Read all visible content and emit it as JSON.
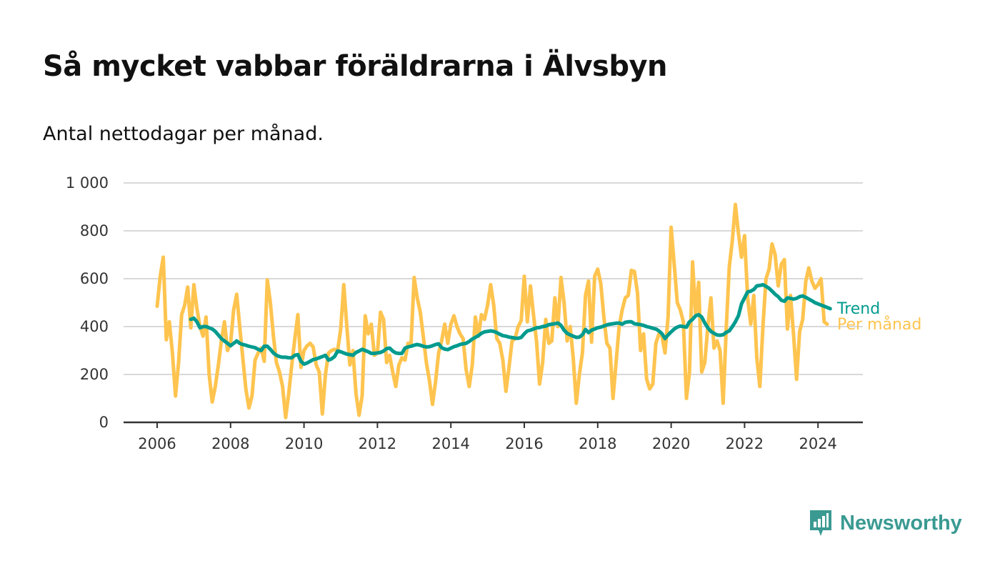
{
  "title": "Så mycket vabbar föräldrarna i Älvsbyn",
  "subtitle": "Antal nettodagar per månad.",
  "brand": {
    "name": "Newsworthy",
    "color": "#3a9a92"
  },
  "chart_data": {
    "type": "line",
    "x_start_year": 2006,
    "ylim": [
      0,
      1000
    ],
    "yticks": [
      {
        "value": 0,
        "label": "0"
      },
      {
        "value": 200,
        "label": "200"
      },
      {
        "value": 400,
        "label": "400"
      },
      {
        "value": 600,
        "label": "600"
      },
      {
        "value": 800,
        "label": "800"
      },
      {
        "value": 1000,
        "label": "1 000"
      }
    ],
    "xticks": [
      {
        "value": 2006,
        "label": "2006"
      },
      {
        "value": 2008,
        "label": "2008"
      },
      {
        "value": 2010,
        "label": "2010"
      },
      {
        "value": 2012,
        "label": "2012"
      },
      {
        "value": 2014,
        "label": "2014"
      },
      {
        "value": 2016,
        "label": "2016"
      },
      {
        "value": 2018,
        "label": "2018"
      },
      {
        "value": 2020,
        "label": "2020"
      },
      {
        "value": 2022,
        "label": "2022"
      },
      {
        "value": 2024,
        "label": "2024"
      }
    ],
    "grid": true,
    "series": [
      {
        "name": "Per månad",
        "color": "#fec44f",
        "start": "2006-01",
        "values": [
          485,
          610,
          690,
          345,
          420,
          290,
          110,
          250,
          450,
          490,
          565,
          395,
          575,
          475,
          400,
          360,
          440,
          200,
          85,
          150,
          240,
          340,
          420,
          300,
          330,
          470,
          535,
          400,
          270,
          140,
          60,
          110,
          260,
          290,
          310,
          255,
          595,
          500,
          360,
          250,
          210,
          150,
          20,
          120,
          240,
          350,
          450,
          230,
          300,
          320,
          330,
          315,
          240,
          210,
          35,
          200,
          290,
          300,
          305,
          300,
          390,
          575,
          400,
          240,
          300,
          120,
          30,
          110,
          445,
          370,
          410,
          280,
          290,
          460,
          430,
          250,
          280,
          210,
          150,
          240,
          270,
          260,
          330,
          330,
          605,
          520,
          460,
          360,
          250,
          175,
          75,
          170,
          290,
          340,
          410,
          330,
          410,
          445,
          400,
          370,
          350,
          220,
          150,
          240,
          440,
          360,
          450,
          430,
          490,
          575,
          490,
          350,
          330,
          260,
          130,
          230,
          340,
          350,
          400,
          425,
          610,
          420,
          570,
          450,
          340,
          160,
          250,
          430,
          330,
          340,
          520,
          400,
          605,
          500,
          340,
          400,
          270,
          80,
          200,
          290,
          530,
          590,
          335,
          610,
          640,
          580,
          440,
          330,
          310,
          100,
          250,
          400,
          470,
          520,
          530,
          635,
          630,
          540,
          300,
          370,
          180,
          140,
          160,
          330,
          370,
          360,
          290,
          440,
          815,
          660,
          500,
          470,
          420,
          100,
          210,
          670,
          450,
          585,
          210,
          250,
          400,
          520,
          310,
          340,
          300,
          80,
          390,
          650,
          760,
          910,
          790,
          690,
          780,
          520,
          410,
          530,
          270,
          150,
          400,
          600,
          640,
          745,
          700,
          570,
          660,
          680,
          390,
          530,
          370,
          180,
          380,
          430,
          590,
          645,
          590,
          560,
          575,
          600,
          420,
          410
        ]
      },
      {
        "name": "Trend",
        "color": "#009b8e",
        "start": "2006-12",
        "values": [
          430,
          435,
          420,
          395,
          400,
          400,
          395,
          390,
          380,
          365,
          350,
          340,
          330,
          320,
          330,
          340,
          330,
          325,
          322,
          318,
          315,
          312,
          305,
          300,
          318,
          318,
          305,
          290,
          280,
          275,
          272,
          272,
          270,
          270,
          280,
          283,
          255,
          243,
          248,
          255,
          262,
          265,
          270,
          275,
          280,
          260,
          265,
          275,
          298,
          295,
          290,
          285,
          283,
          280,
          292,
          298,
          305,
          300,
          295,
          288,
          288,
          290,
          292,
          298,
          308,
          310,
          298,
          290,
          288,
          288,
          310,
          315,
          318,
          322,
          325,
          322,
          318,
          315,
          316,
          320,
          325,
          328,
          312,
          306,
          304,
          310,
          316,
          320,
          325,
          328,
          330,
          338,
          348,
          355,
          362,
          372,
          378,
          380,
          382,
          380,
          375,
          368,
          362,
          360,
          356,
          354,
          352,
          351,
          355,
          370,
          382,
          385,
          390,
          395,
          396,
          400,
          402,
          408,
          410,
          412,
          415,
          405,
          385,
          372,
          365,
          360,
          355,
          356,
          366,
          388,
          375,
          385,
          390,
          395,
          398,
          402,
          407,
          410,
          412,
          414,
          415,
          410,
          418,
          420,
          420,
          412,
          410,
          408,
          405,
          400,
          397,
          393,
          390,
          382,
          370,
          350,
          365,
          378,
          390,
          398,
          402,
          400,
          398,
          420,
          430,
          445,
          450,
          440,
          415,
          395,
          380,
          372,
          365,
          364,
          366,
          376,
          382,
          400,
          420,
          445,
          495,
          520,
          545,
          548,
          555,
          570,
          572,
          575,
          568,
          560,
          548,
          535,
          525,
          510,
          506,
          520,
          518,
          515,
          518,
          525,
          528,
          522,
          515,
          508,
          500,
          495,
          490,
          485,
          480,
          475
        ]
      }
    ]
  }
}
